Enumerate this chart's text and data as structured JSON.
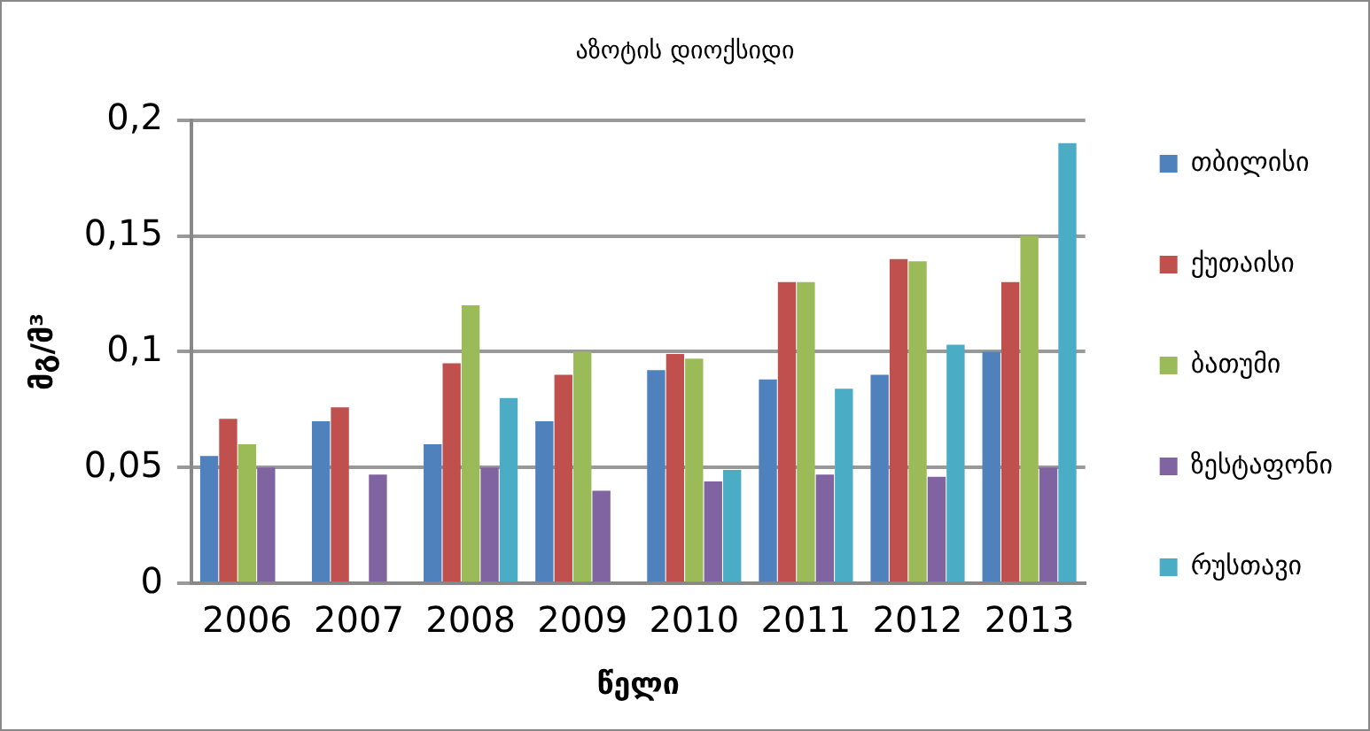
{
  "chart_data": {
    "type": "bar",
    "title": "აზოტის დიოქსიდი",
    "xlabel": "წელი",
    "ylabel": "მგ/მ³",
    "categories": [
      "2006",
      "2007",
      "2008",
      "2009",
      "2010",
      "2011",
      "2012",
      "2013"
    ],
    "series": [
      {
        "name": "თბილისი",
        "color": "#4f81bd",
        "values": [
          0.055,
          0.07,
          0.06,
          0.07,
          0.092,
          0.088,
          0.09,
          0.1
        ]
      },
      {
        "name": "ქუთაისი",
        "color": "#c0504d",
        "values": [
          0.071,
          0.076,
          0.095,
          0.09,
          0.099,
          0.13,
          0.14,
          0.13
        ]
      },
      {
        "name": "ბათუმი",
        "color": "#9bbb59",
        "values": [
          0.06,
          null,
          0.12,
          0.1,
          0.097,
          0.13,
          0.139,
          0.15
        ]
      },
      {
        "name": "ზესტაფონი",
        "color": "#8064a2",
        "values": [
          0.05,
          0.047,
          0.05,
          0.04,
          0.044,
          0.047,
          0.046,
          0.05
        ]
      },
      {
        "name": "რუსთავი",
        "color": "#4bacc6",
        "values": [
          null,
          null,
          0.08,
          null,
          0.049,
          0.084,
          0.103,
          0.19
        ]
      }
    ],
    "ylim": [
      0,
      0.2
    ],
    "yticks": [
      0,
      {
        "value": 0.05,
        "label": "0,05"
      },
      {
        "value": 0.1,
        "label": "0,1"
      },
      {
        "value": 0.15,
        "label": "0,15"
      },
      {
        "value": 0.2,
        "label": "0,2"
      }
    ],
    "grid": "y",
    "legend": "right"
  }
}
